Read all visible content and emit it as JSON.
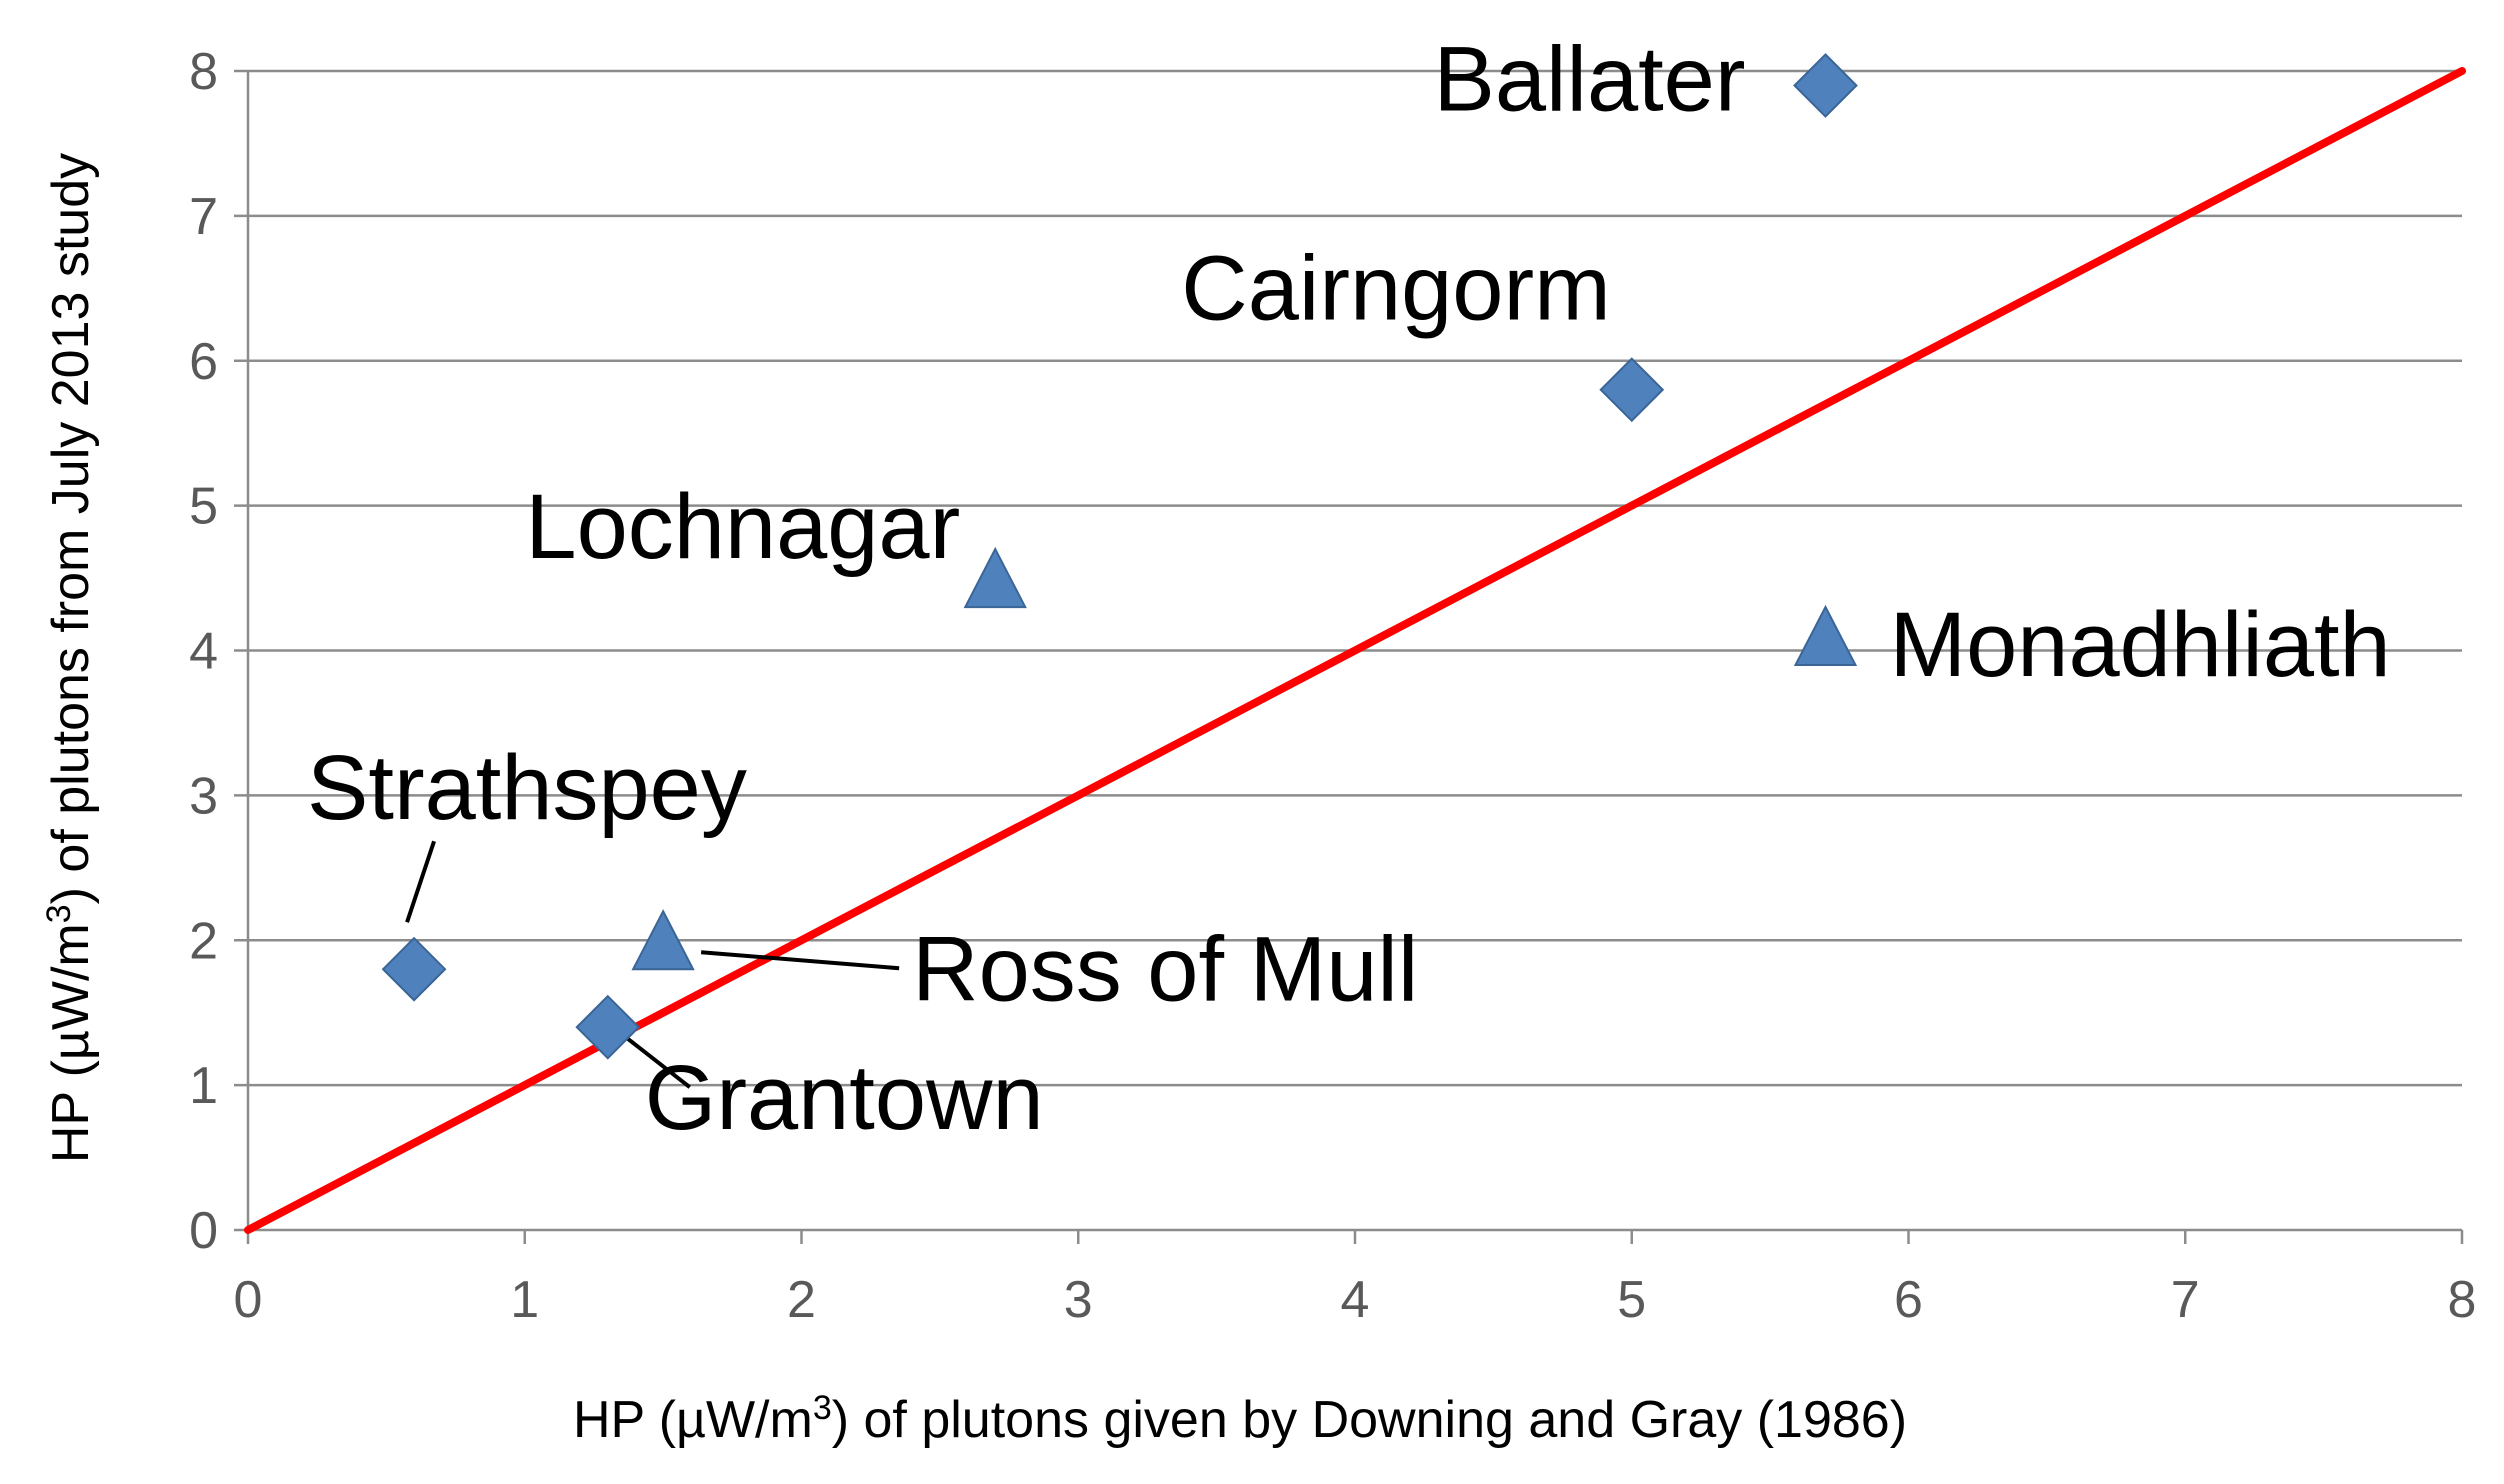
{
  "chart_data": {
    "type": "scatter",
    "title": "",
    "xlabel": {
      "prefix": "HP (µW/m",
      "sup": "3",
      "suffix": ") of plutons given by Downing and Gray (1986)"
    },
    "ylabel": {
      "prefix": "HP (µW/m",
      "sup": "3",
      "suffix": ") of plutons from July 2013 study"
    },
    "xlim": [
      0,
      8
    ],
    "ylim": [
      0,
      8
    ],
    "xticks": [
      "0",
      "1",
      "2",
      "3",
      "4",
      "5",
      "6",
      "7",
      "8"
    ],
    "yticks": [
      "0",
      "1",
      "2",
      "3",
      "4",
      "5",
      "6",
      "7",
      "8"
    ],
    "grid": "horizontal",
    "legend": "none",
    "colors": {
      "marker": "#4f81bd",
      "marker_stroke": "#3a6596",
      "line": "#ff0000"
    },
    "reference_line": {
      "x": [
        0,
        8
      ],
      "y": [
        0,
        8
      ]
    },
    "series": [
      {
        "marker": "diamond",
        "points": [
          {
            "label": "Ballater",
            "x": 5.7,
            "y": 7.9
          },
          {
            "label": "Cairngorm",
            "x": 5.0,
            "y": 5.8
          },
          {
            "label": "Strathspey",
            "x": 0.6,
            "y": 1.8
          },
          {
            "label": "Grantown",
            "x": 1.3,
            "y": 1.4
          }
        ]
      },
      {
        "marker": "triangle",
        "points": [
          {
            "label": "Lochnagar",
            "x": 2.7,
            "y": 4.5
          },
          {
            "label": "Monadhliath",
            "x": 5.7,
            "y": 4.1
          },
          {
            "label": "Ross of Mull",
            "x": 1.5,
            "y": 2.0
          }
        ]
      }
    ]
  }
}
